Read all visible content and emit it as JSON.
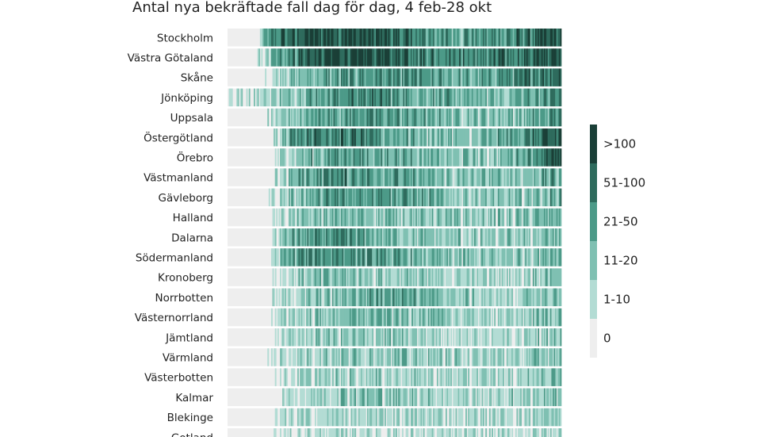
{
  "chart_data": {
    "type": "heatmap",
    "title": "Antal nya bekräftade fall dag för dag, 4 feb-28 okt",
    "x_range": [
      "2020-02-04",
      "2020-10-28"
    ],
    "regions": [
      {
        "name": "Stockholm",
        "first_case_day": 26,
        "profile": [
          [
            20,
            1
          ],
          [
            40,
            4
          ],
          [
            70,
            5
          ],
          [
            100,
            4.7
          ],
          [
            130,
            4.5
          ],
          [
            160,
            3.2
          ],
          [
            200,
            3.2
          ],
          [
            230,
            3.5
          ],
          [
            267,
            5
          ]
        ]
      },
      {
        "name": "Västra Götaland",
        "first_case_day": 24,
        "profile": [
          [
            24,
            0.5
          ],
          [
            40,
            3
          ],
          [
            60,
            4.3
          ],
          [
            90,
            5
          ],
          [
            130,
            4.7
          ],
          [
            160,
            4
          ],
          [
            200,
            3.5
          ],
          [
            230,
            4
          ],
          [
            267,
            4.8
          ]
        ]
      },
      {
        "name": "Skåne",
        "first_case_day": 30,
        "profile": [
          [
            30,
            0.5
          ],
          [
            45,
            2
          ],
          [
            80,
            2.8
          ],
          [
            120,
            3.4
          ],
          [
            160,
            3
          ],
          [
            190,
            2.5
          ],
          [
            230,
            3.4
          ],
          [
            267,
            4.7
          ]
        ]
      },
      {
        "name": "Jönköping",
        "first_case_day": 0,
        "profile": [
          [
            0,
            0.5
          ],
          [
            40,
            1.8
          ],
          [
            70,
            3
          ],
          [
            110,
            3.8
          ],
          [
            140,
            3.2
          ],
          [
            180,
            2.5
          ],
          [
            220,
            2.2
          ],
          [
            267,
            3.8
          ]
        ]
      },
      {
        "name": "Uppsala",
        "first_case_day": 30,
        "profile": [
          [
            30,
            0.5
          ],
          [
            45,
            1.8
          ],
          [
            80,
            3.2
          ],
          [
            120,
            3.3
          ],
          [
            160,
            2.6
          ],
          [
            200,
            2.2
          ],
          [
            240,
            2.4
          ],
          [
            267,
            3.5
          ]
        ]
      },
      {
        "name": "Östergötland",
        "first_case_day": 37,
        "profile": [
          [
            37,
            0.8
          ],
          [
            50,
            3.5
          ],
          [
            80,
            4
          ],
          [
            110,
            3.5
          ],
          [
            150,
            2.5
          ],
          [
            200,
            1.8
          ],
          [
            230,
            3
          ],
          [
            267,
            4.5
          ]
        ]
      },
      {
        "name": "Örebro",
        "first_case_day": 38,
        "profile": [
          [
            38,
            0.8
          ],
          [
            55,
            2
          ],
          [
            90,
            3.3
          ],
          [
            130,
            2.8
          ],
          [
            170,
            2.2
          ],
          [
            210,
            1.8
          ],
          [
            240,
            3.2
          ],
          [
            267,
            4.6
          ]
        ]
      },
      {
        "name": "Västmanland",
        "first_case_day": 38,
        "profile": [
          [
            38,
            0.8
          ],
          [
            55,
            2.5
          ],
          [
            80,
            3.6
          ],
          [
            120,
            3.2
          ],
          [
            160,
            2.4
          ],
          [
            200,
            1.8
          ],
          [
            240,
            2.2
          ],
          [
            267,
            3
          ]
        ]
      },
      {
        "name": "Gävleborg",
        "first_case_day": 33,
        "profile": [
          [
            33,
            0.5
          ],
          [
            50,
            2
          ],
          [
            80,
            3
          ],
          [
            120,
            3.5
          ],
          [
            150,
            2.8
          ],
          [
            190,
            1.8
          ],
          [
            230,
            1.8
          ],
          [
            267,
            2.8
          ]
        ]
      },
      {
        "name": "Halland",
        "first_case_day": 35,
        "profile": [
          [
            35,
            0.8
          ],
          [
            50,
            1.5
          ],
          [
            90,
            2.4
          ],
          [
            130,
            2.2
          ],
          [
            170,
            1.8
          ],
          [
            210,
            1.6
          ],
          [
            240,
            2
          ],
          [
            267,
            2.8
          ]
        ]
      },
      {
        "name": "Dalarna",
        "first_case_day": 36,
        "profile": [
          [
            36,
            0.8
          ],
          [
            50,
            2.5
          ],
          [
            80,
            3.3
          ],
          [
            110,
            2.8
          ],
          [
            150,
            2
          ],
          [
            200,
            1.5
          ],
          [
            240,
            1.6
          ],
          [
            267,
            2.5
          ]
        ]
      },
      {
        "name": "Södermanland",
        "first_case_day": 34,
        "profile": [
          [
            34,
            0.8
          ],
          [
            50,
            3
          ],
          [
            80,
            3.7
          ],
          [
            110,
            3.2
          ],
          [
            150,
            2.4
          ],
          [
            200,
            1.7
          ],
          [
            240,
            2
          ],
          [
            267,
            3
          ]
        ]
      },
      {
        "name": "Kronoberg",
        "first_case_day": 36,
        "profile": [
          [
            36,
            0.5
          ],
          [
            55,
            1.6
          ],
          [
            90,
            2.2
          ],
          [
            130,
            1.8
          ],
          [
            170,
            1.5
          ],
          [
            210,
            1.3
          ],
          [
            240,
            1.6
          ],
          [
            267,
            2.4
          ]
        ]
      },
      {
        "name": "Norrbotten",
        "first_case_day": 34,
        "profile": [
          [
            34,
            0.5
          ],
          [
            50,
            1.3
          ],
          [
            90,
            2.2
          ],
          [
            130,
            3.4
          ],
          [
            160,
            2.3
          ],
          [
            200,
            1.5
          ],
          [
            240,
            1.5
          ],
          [
            267,
            2.4
          ]
        ]
      },
      {
        "name": "Västernorrland",
        "first_case_day": 34,
        "profile": [
          [
            34,
            0.5
          ],
          [
            50,
            1.4
          ],
          [
            90,
            2.2
          ],
          [
            130,
            2.4
          ],
          [
            170,
            1.8
          ],
          [
            210,
            1.3
          ],
          [
            240,
            1.5
          ],
          [
            267,
            2.4
          ]
        ]
      },
      {
        "name": "Jämtland",
        "first_case_day": 36,
        "profile": [
          [
            36,
            0.5
          ],
          [
            55,
            1.4
          ],
          [
            90,
            1.8
          ],
          [
            130,
            1.7
          ],
          [
            170,
            1.4
          ],
          [
            210,
            1.2
          ],
          [
            240,
            1.4
          ],
          [
            267,
            2
          ]
        ]
      },
      {
        "name": "Värmland",
        "first_case_day": 32,
        "profile": [
          [
            32,
            0.5
          ],
          [
            50,
            1.3
          ],
          [
            90,
            2
          ],
          [
            130,
            2.1
          ],
          [
            170,
            1.6
          ],
          [
            210,
            1.3
          ],
          [
            240,
            1.6
          ],
          [
            267,
            2.4
          ]
        ]
      },
      {
        "name": "Västerbotten",
        "first_case_day": 36,
        "profile": [
          [
            36,
            0.5
          ],
          [
            55,
            1.2
          ],
          [
            90,
            1.6
          ],
          [
            130,
            1.6
          ],
          [
            170,
            1.3
          ],
          [
            210,
            1.2
          ],
          [
            240,
            1.6
          ],
          [
            267,
            2.2
          ]
        ]
      },
      {
        "name": "Kalmar",
        "first_case_day": 36,
        "profile": [
          [
            36,
            0.5
          ],
          [
            55,
            1.3
          ],
          [
            90,
            2
          ],
          [
            130,
            2
          ],
          [
            170,
            1.5
          ],
          [
            210,
            1.3
          ],
          [
            240,
            1.6
          ],
          [
            267,
            2.3
          ]
        ]
      },
      {
        "name": "Blekinge",
        "first_case_day": 36,
        "profile": [
          [
            36,
            0.5
          ],
          [
            55,
            1.1
          ],
          [
            90,
            1.3
          ],
          [
            130,
            1.4
          ],
          [
            170,
            1.2
          ],
          [
            210,
            1.1
          ],
          [
            240,
            1.3
          ],
          [
            267,
            1.8
          ]
        ]
      },
      {
        "name": "Gotland",
        "first_case_day": 36,
        "profile": [
          [
            36,
            0.4
          ],
          [
            55,
            0.9
          ],
          [
            90,
            1.1
          ],
          [
            130,
            1
          ],
          [
            170,
            0.9
          ],
          [
            210,
            0.9
          ],
          [
            240,
            1
          ],
          [
            267,
            1.3
          ]
        ]
      }
    ],
    "legend": {
      "placement": "right",
      "categories": [
        "0",
        "1-10",
        "11-20",
        "21-50",
        "51-100",
        ">100"
      ],
      "colors": [
        "#eeeeee",
        "#b3dcd4",
        "#7fc0b2",
        "#4c9a88",
        "#2e6b5d",
        "#1a3f37"
      ]
    }
  }
}
